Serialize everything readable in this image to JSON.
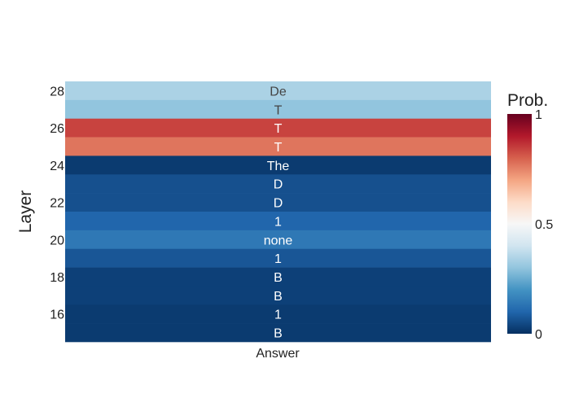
{
  "chart_data": {
    "type": "heatmap",
    "xlabel": "Answer",
    "ylabel": "Layer",
    "x_categories": [
      "Answer"
    ],
    "y_values": [
      28,
      27,
      26,
      25,
      24,
      23,
      22,
      21,
      20,
      19,
      18,
      17,
      16,
      15
    ],
    "y_tick_labels": [
      "28",
      "26",
      "24",
      "22",
      "20",
      "18",
      "16"
    ],
    "cells": [
      {
        "layer": 28,
        "token": "De",
        "prob": 0.34
      },
      {
        "layer": 27,
        "token": "T",
        "prob": 0.3
      },
      {
        "layer": 26,
        "token": "T",
        "prob": 0.84
      },
      {
        "layer": 25,
        "token": "T",
        "prob": 0.77
      },
      {
        "layer": 24,
        "token": "The",
        "prob": 0.02
      },
      {
        "layer": 23,
        "token": "D",
        "prob": 0.06
      },
      {
        "layer": 22,
        "token": "D",
        "prob": 0.06
      },
      {
        "layer": 21,
        "token": "1",
        "prob": 0.1
      },
      {
        "layer": 20,
        "token": "none",
        "prob": 0.14
      },
      {
        "layer": 19,
        "token": "1",
        "prob": 0.07
      },
      {
        "layer": 18,
        "token": "B",
        "prob": 0.03
      },
      {
        "layer": 17,
        "token": "B",
        "prob": 0.03
      },
      {
        "layer": 16,
        "token": "1",
        "prob": 0.02
      },
      {
        "layer": 15,
        "token": "B",
        "prob": 0.02
      }
    ],
    "colorscale": {
      "name": "RdBu",
      "range": [
        0,
        1
      ],
      "stops": [
        [
          0.0,
          "#053061"
        ],
        [
          0.1,
          "#2166ac"
        ],
        [
          0.2,
          "#4393c3"
        ],
        [
          0.3,
          "#92c5de"
        ],
        [
          0.4,
          "#d1e5f0"
        ],
        [
          0.5,
          "#f7f7f7"
        ],
        [
          0.6,
          "#fddbc7"
        ],
        [
          0.7,
          "#f4a582"
        ],
        [
          0.8,
          "#d6604d"
        ],
        [
          0.9,
          "#b2182b"
        ],
        [
          1.0,
          "#67001f"
        ]
      ]
    },
    "colorbar": {
      "title": "Prob.",
      "tick_labels": [
        "1",
        "0.5",
        "0"
      ],
      "tick_values": [
        1,
        0.5,
        0
      ]
    }
  }
}
